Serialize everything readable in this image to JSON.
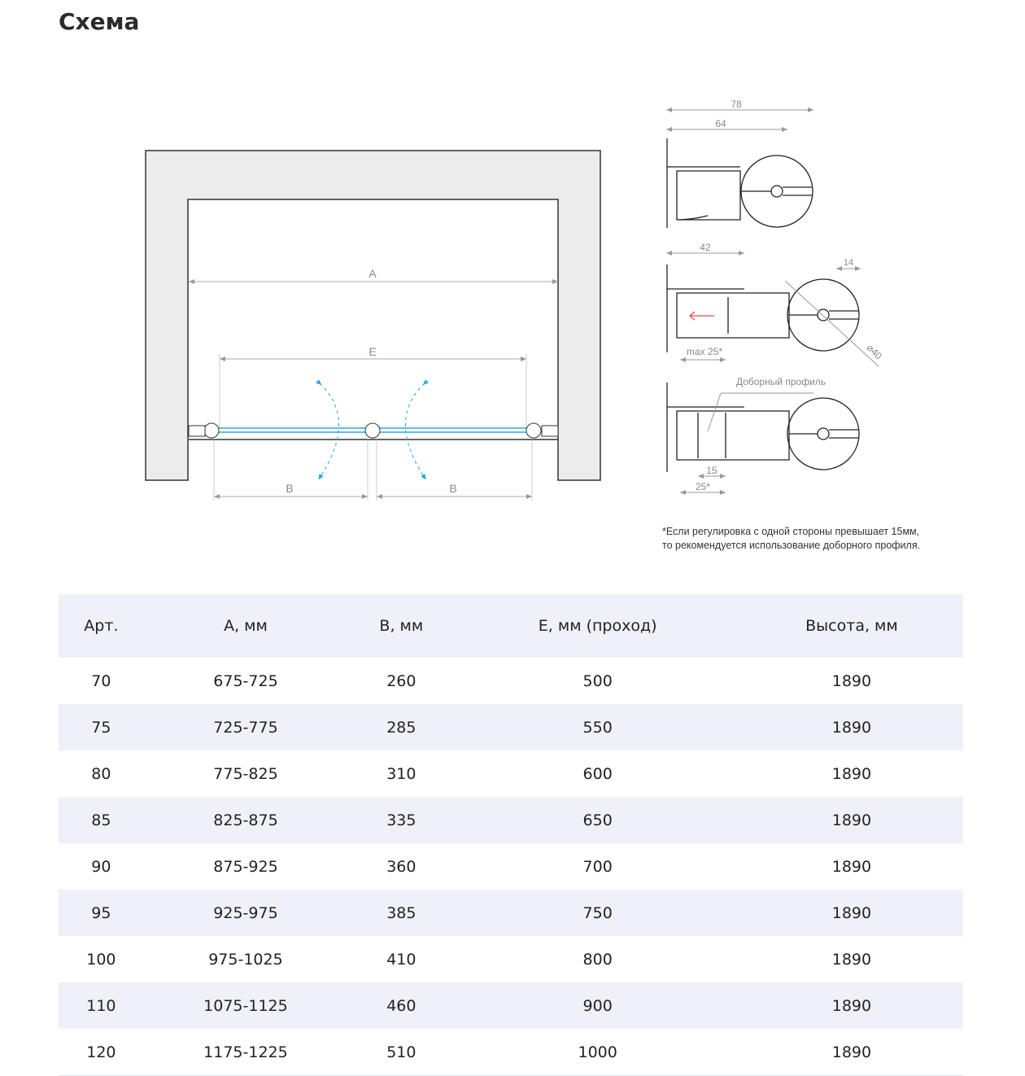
{
  "title": "Схема",
  "diagram": {
    "plan_labels": {
      "a": "A",
      "e": "E",
      "b_left": "B",
      "b_right": "B"
    },
    "profile_labels": {
      "dim_78": "78",
      "dim_64": "64",
      "dim_42": "42",
      "dim_14": "14",
      "dim_max25": "max 25*",
      "dim_diam40": "⌀40",
      "extra_profile": "Доборный профиль",
      "dim_15": "15",
      "dim_25": "25*"
    },
    "colors": {
      "glass": "#29a8e0",
      "wall": "#ececec",
      "arrow_red": "#e84a4a",
      "dimension": "#999999"
    }
  },
  "note": {
    "line1": "*Если регулировка с одной стороны превышает 15мм,",
    "line2": "то рекомендуется использование доборного профиля."
  },
  "table": {
    "headers": [
      "Арт.",
      "A, мм",
      "B, мм",
      "E, мм (проход)",
      "Высота, мм"
    ],
    "rows": [
      [
        "70",
        "675-725",
        "260",
        "500",
        "1890"
      ],
      [
        "75",
        "725-775",
        "285",
        "550",
        "1890"
      ],
      [
        "80",
        "775-825",
        "310",
        "600",
        "1890"
      ],
      [
        "85",
        "825-875",
        "335",
        "650",
        "1890"
      ],
      [
        "90",
        "875-925",
        "360",
        "700",
        "1890"
      ],
      [
        "95",
        "925-975",
        "385",
        "750",
        "1890"
      ],
      [
        "100",
        "975-1025",
        "410",
        "800",
        "1890"
      ],
      [
        "110",
        "1075-1125",
        "460",
        "900",
        "1890"
      ],
      [
        "120",
        "1175-1225",
        "510",
        "1000",
        "1890"
      ]
    ]
  }
}
